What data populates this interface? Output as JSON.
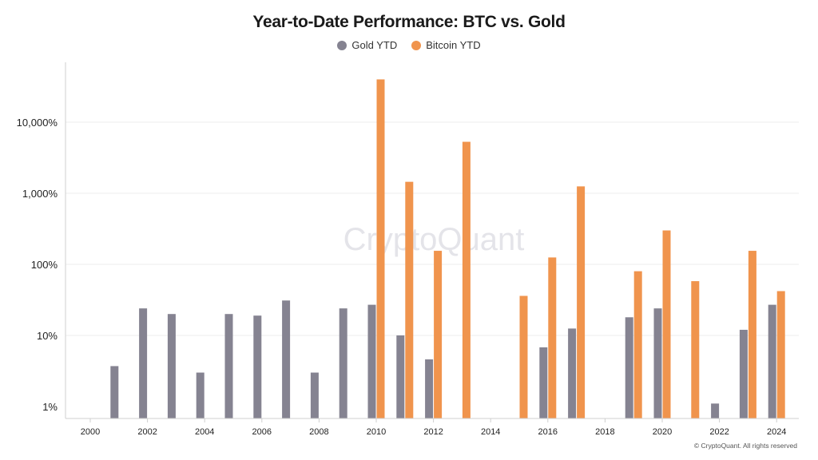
{
  "title": "Year-to-Date Performance: BTC vs. Gold",
  "watermark": "CryptoQuant",
  "copyright": "© CryptoQuant. All rights reserved",
  "colors": {
    "gold": "#858391",
    "bitcoin": "#f0944d",
    "grid": "#eeeeee",
    "axis": "#cfcfcf"
  },
  "chart_data": {
    "type": "bar",
    "title": "Year-to-Date Performance: BTC vs. Gold",
    "xlabel": "",
    "ylabel": "",
    "yscale": "log",
    "ylim": [
      0.8,
      50000
    ],
    "grid": "horizontal",
    "legend_position": "top",
    "x_ticks": [
      "2000",
      "2002",
      "2004",
      "2006",
      "2008",
      "2010",
      "2012",
      "2014",
      "2016",
      "2018",
      "2020",
      "2022",
      "2024"
    ],
    "y_ticks": [
      {
        "value": 1,
        "label": "1%"
      },
      {
        "value": 10,
        "label": "10%"
      },
      {
        "value": 100,
        "label": "100%"
      },
      {
        "value": 1000,
        "label": "1,000%"
      },
      {
        "value": 10000,
        "label": "10,000%"
      }
    ],
    "categories": [
      2001,
      2002,
      2003,
      2004,
      2005,
      2006,
      2007,
      2008,
      2009,
      2010,
      2011,
      2012,
      2013,
      2014,
      2015,
      2016,
      2017,
      2018,
      2019,
      2020,
      2021,
      2022,
      2023,
      2024
    ],
    "series": [
      {
        "name": "Gold YTD",
        "color": "#858391",
        "values": [
          3.7,
          24,
          20,
          3,
          20,
          19,
          31,
          3,
          24,
          27,
          10,
          4.6,
          null,
          null,
          null,
          6.8,
          12.5,
          null,
          18,
          24,
          null,
          1.1,
          12,
          27
        ]
      },
      {
        "name": "Bitcoin YTD",
        "color": "#f0944d",
        "values": [
          null,
          null,
          null,
          null,
          null,
          null,
          null,
          null,
          null,
          40000,
          1450,
          155,
          5300,
          null,
          36,
          125,
          1250,
          null,
          80,
          300,
          58,
          null,
          155,
          42
        ]
      }
    ]
  }
}
